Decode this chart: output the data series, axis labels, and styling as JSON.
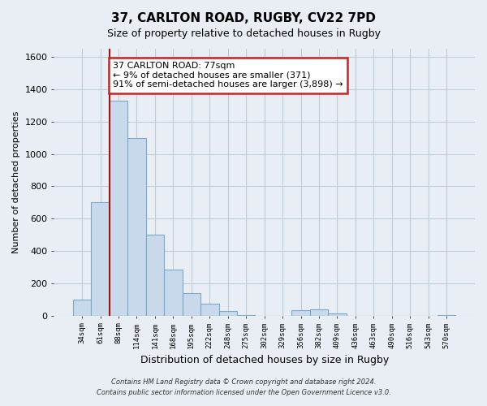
{
  "title": "37, CARLTON ROAD, RUGBY, CV22 7PD",
  "subtitle": "Size of property relative to detached houses in Rugby",
  "xlabel": "Distribution of detached houses by size in Rugby",
  "ylabel": "Number of detached properties",
  "bar_labels": [
    "34sqm",
    "61sqm",
    "88sqm",
    "114sqm",
    "141sqm",
    "168sqm",
    "195sqm",
    "222sqm",
    "248sqm",
    "275sqm",
    "302sqm",
    "329sqm",
    "356sqm",
    "382sqm",
    "409sqm",
    "436sqm",
    "463sqm",
    "490sqm",
    "516sqm",
    "543sqm",
    "570sqm"
  ],
  "bar_values": [
    100,
    700,
    1330,
    1100,
    500,
    285,
    140,
    75,
    30,
    5,
    0,
    0,
    35,
    40,
    15,
    0,
    0,
    0,
    0,
    0,
    5
  ],
  "bar_color": "#c8d9eb",
  "bar_edge_color": "#7aaac8",
  "ylim": [
    0,
    1650
  ],
  "yticks": [
    0,
    200,
    400,
    600,
    800,
    1000,
    1200,
    1400,
    1600
  ],
  "red_line_index": 2,
  "annotation_line1": "37 CARLTON ROAD: 77sqm",
  "annotation_line2": "← 9% of detached houses are smaller (371)",
  "annotation_line3": "91% of semi-detached houses are larger (3,898) →",
  "annotation_box_color": "#ffffff",
  "annotation_box_edge": "#cc2222",
  "footer_line1": "Contains HM Land Registry data © Crown copyright and database right 2024.",
  "footer_line2": "Contains public sector information licensed under the Open Government Licence v3.0.",
  "background_color": "#e8eef4",
  "plot_bg_color": "#e8eef4",
  "grid_color": "#c0ccd8",
  "title_fontsize": 11,
  "subtitle_fontsize": 9
}
